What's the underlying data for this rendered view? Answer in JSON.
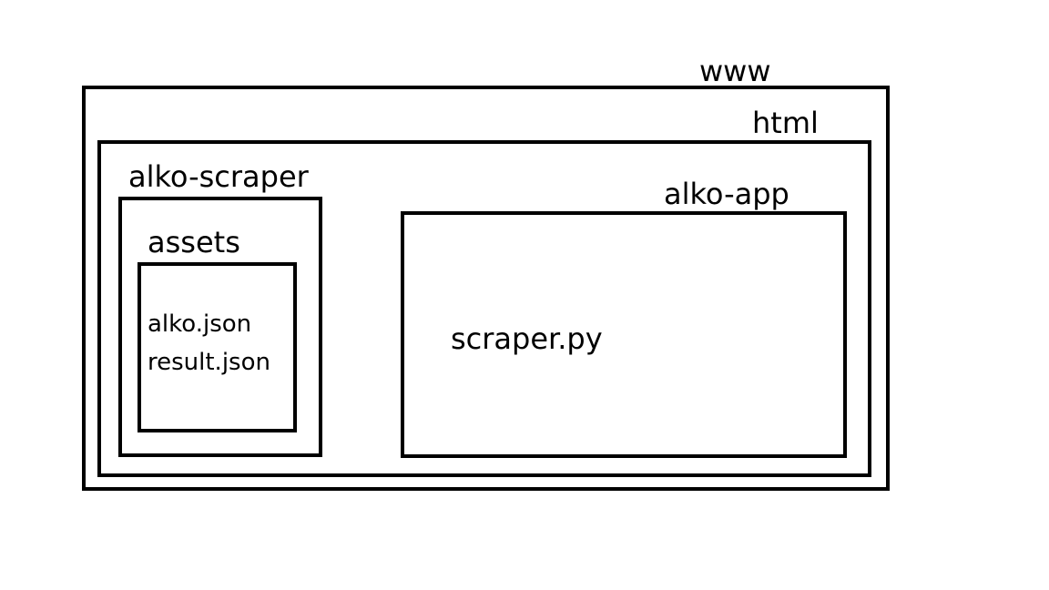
{
  "diagram": {
    "folders": {
      "www": {
        "label": "www"
      },
      "html": {
        "label": "html"
      },
      "alko_scraper": {
        "label": "alko-scraper"
      },
      "assets": {
        "label": "assets",
        "files": [
          "alko.json",
          "result.json"
        ]
      },
      "alko_app": {
        "label": "alko-app",
        "files": [
          "scraper.py"
        ]
      }
    },
    "colors": {
      "stroke": "#000000",
      "background": "#ffffff"
    }
  }
}
